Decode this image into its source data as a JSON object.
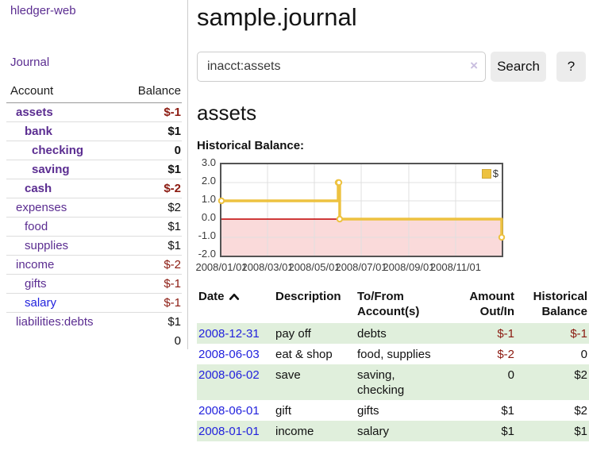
{
  "sidebar": {
    "brand": "hledger-web",
    "journal_link": "Journal",
    "accounts_table": {
      "account_header": "Account",
      "balance_header": "Balance",
      "rows": [
        {
          "name": "assets",
          "indent": 1,
          "bold": true,
          "balance": "$-1"
        },
        {
          "name": "bank",
          "indent": 2,
          "bold": true,
          "balance": "$1"
        },
        {
          "name": "checking",
          "indent": 3,
          "bold": true,
          "balance": "0"
        },
        {
          "name": "saving",
          "indent": 3,
          "bold": true,
          "balance": "$1"
        },
        {
          "name": "cash",
          "indent": 2,
          "bold": true,
          "balance": "$-2"
        },
        {
          "name": "expenses",
          "indent": 1,
          "bold": false,
          "balance": "$2"
        },
        {
          "name": "food",
          "indent": 2,
          "bold": false,
          "balance": "$1"
        },
        {
          "name": "supplies",
          "indent": 2,
          "bold": false,
          "balance": "$1"
        },
        {
          "name": "income",
          "indent": 1,
          "bold": false,
          "balance": "$-2"
        },
        {
          "name": "gifts",
          "indent": 2,
          "bold": false,
          "balance": "$-1"
        },
        {
          "name": "salary",
          "indent": 2,
          "bold": false,
          "balance": "$-1",
          "unvisited": true
        },
        {
          "name": "liabilities:debts",
          "indent": 1,
          "bold": false,
          "balance": "$1"
        }
      ],
      "total": "0"
    }
  },
  "header": {
    "title": "sample.journal"
  },
  "search": {
    "query": "inacct:assets",
    "clear_icon": "×",
    "search_label": "Search",
    "help_label": "?"
  },
  "account_page": {
    "heading": "assets",
    "chart_label": "Historical Balance:"
  },
  "chart_data": {
    "type": "line",
    "step": true,
    "title": "Historical Balance",
    "series": [
      {
        "name": "$",
        "color": "#edc240",
        "dates": [
          "2008-01-01",
          "2008-06-01",
          "2008-06-02",
          "2008-06-03",
          "2008-12-31"
        ],
        "x_days": [
          0,
          152,
          153,
          154,
          365
        ],
        "values": [
          1,
          2,
          2,
          0,
          -1
        ]
      }
    ],
    "x_tick_labels": [
      "2008/01/01",
      "2008/03/01",
      "2008/05/01",
      "2008/07/01",
      "2008/09/01",
      "2008/11/01"
    ],
    "x_tick_days": [
      0,
      60,
      121,
      182,
      244,
      305
    ],
    "x_range_days": [
      0,
      365
    ],
    "y_ticks": [
      "3.0",
      "2.0",
      "1.0",
      "0.0",
      "-1.0",
      "-2.0"
    ],
    "y_tick_values": [
      3,
      2,
      1,
      0,
      -1,
      -2
    ],
    "ylim": [
      -2,
      3
    ],
    "legend": {
      "label": "$"
    },
    "zero_line_color": "#c00000",
    "negative_region_color": "#fadada",
    "grid_color": "#e0e0e0",
    "border_color": "#545454"
  },
  "register": {
    "header": {
      "date": "Date",
      "description": "Description",
      "tofrom": "To/From\nAccount(s)",
      "amount": "Amount\nOut/In",
      "balance": "Historical\nBalance"
    },
    "rows": [
      {
        "date": "2008-12-31",
        "description": "pay off",
        "accounts": "debts",
        "amount": "$-1",
        "balance": "$-1",
        "shaded": true
      },
      {
        "date": "2008-06-03",
        "description": "eat & shop",
        "accounts": "food, supplies",
        "amount": "$-2",
        "balance": "0",
        "shaded": false
      },
      {
        "date": "2008-06-02",
        "description": "save",
        "accounts": "saving,\nchecking",
        "amount": "0",
        "balance": "$2",
        "shaded": true
      },
      {
        "date": "2008-06-01",
        "description": "gift",
        "accounts": "gifts",
        "amount": "$1",
        "balance": "$2",
        "shaded": false
      },
      {
        "date": "2008-01-01",
        "description": "income",
        "accounts": "salary",
        "amount": "$1",
        "balance": "$1",
        "shaded": true
      }
    ]
  },
  "colors": {
    "link_purple": "#5b2d91",
    "link_blue": "#2222dd",
    "negative_red": "#8b1a10",
    "stripe_green": "#e0efdc",
    "chart_gold": "#edc240",
    "button_gray": "#ececec"
  }
}
